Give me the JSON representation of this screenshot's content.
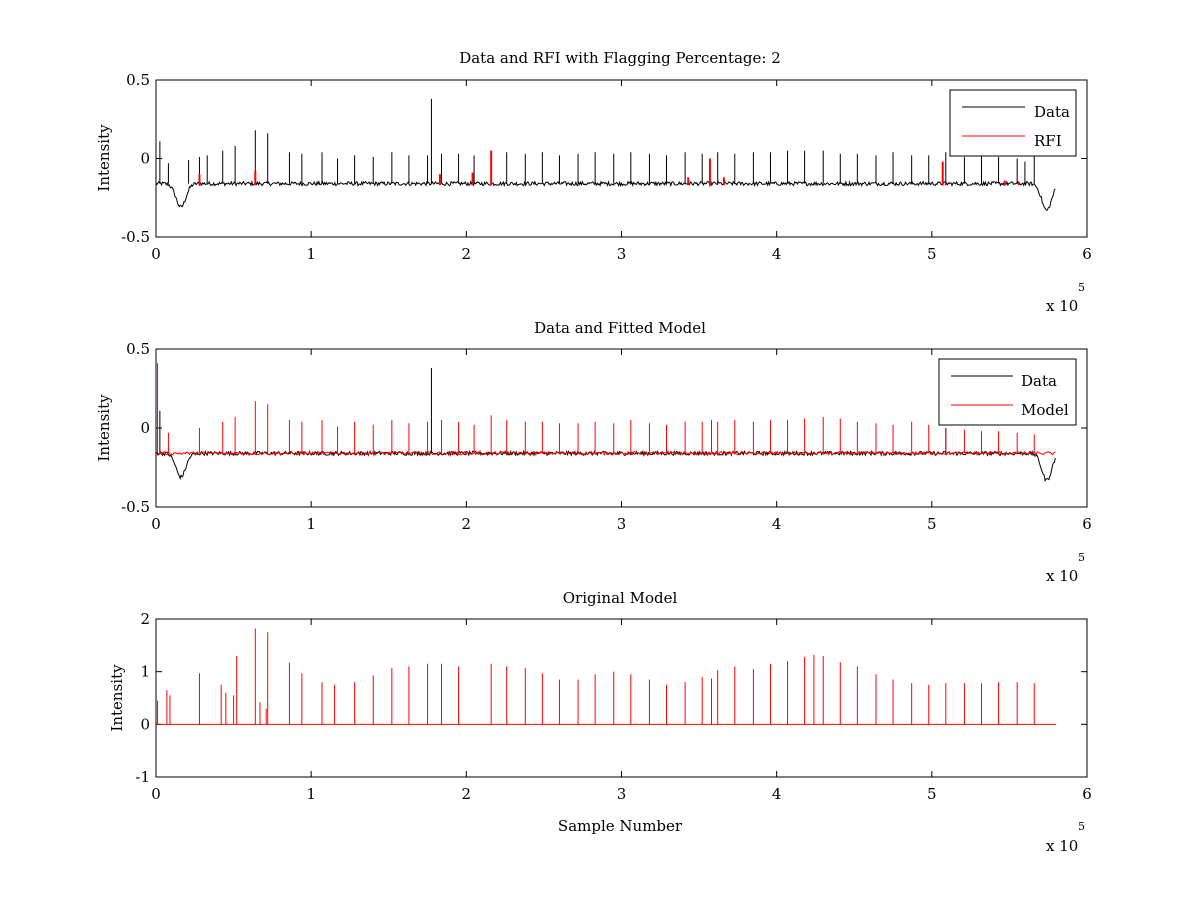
{
  "window": {
    "background": "#ffffff"
  },
  "colors": {
    "data": "#000000",
    "rfi": "#ff0000",
    "model": "#ff0000",
    "axes": "#000000"
  },
  "chart_data": [
    {
      "type": "line",
      "title": "Data and RFI with Flagging Percentage: 2",
      "xlabel": "",
      "ylabel": "Intensity",
      "xlim": [
        0,
        600000
      ],
      "ylim": [
        -0.5,
        0.5
      ],
      "xticks": [
        0,
        1,
        2,
        3,
        4,
        5,
        6
      ],
      "yticks": [
        -0.5,
        0,
        0.5
      ],
      "xtick_labels": [
        "0",
        "1",
        "2",
        "3",
        "4",
        "5",
        "6"
      ],
      "ytick_labels": [
        "-0.5",
        "0",
        "0.5"
      ],
      "x_multiplier_label": "x 10",
      "x_multiplier_exponent": "5",
      "legend_position": "top-right",
      "grid": false,
      "series": [
        {
          "name": "Data",
          "color": "#000000",
          "baseline": -0.16,
          "spikes_x": [
            2500,
            8000,
            21000,
            28000,
            33000,
            43000,
            51000,
            64000,
            72000,
            86000,
            94000,
            107000,
            117000,
            128000,
            140000,
            152000,
            163000,
            175000,
            177500,
            184000,
            195000,
            205000,
            216000,
            226000,
            238000,
            249000,
            260000,
            272000,
            283000,
            295000,
            306000,
            318000,
            329000,
            341000,
            352000,
            362000,
            373000,
            385000,
            396000,
            407000,
            418000,
            430000,
            441000,
            452000,
            464000,
            475000,
            487000,
            498000,
            509000,
            521000,
            532000,
            543000,
            555000,
            560000,
            566000
          ],
          "spikes_y": [
            0.11,
            -0.03,
            -0.01,
            0.01,
            0.02,
            0.05,
            0.08,
            0.18,
            0.16,
            0.04,
            0.03,
            0.04,
            0.0,
            0.02,
            0.01,
            0.04,
            0.02,
            0.02,
            0.38,
            0.03,
            0.03,
            0.02,
            0.05,
            0.04,
            0.03,
            0.04,
            0.02,
            0.03,
            0.04,
            0.03,
            0.04,
            0.03,
            0.02,
            0.04,
            0.03,
            0.04,
            0.03,
            0.04,
            0.04,
            0.05,
            0.05,
            0.05,
            0.03,
            0.03,
            0.02,
            0.04,
            0.02,
            0.02,
            0.04,
            0.01,
            0.02,
            0.01,
            0.0,
            -0.02,
            0.05
          ],
          "dips_x": [
            16000,
            574000
          ],
          "dips_y": [
            -0.31,
            -0.33
          ]
        },
        {
          "name": "RFI",
          "color": "#ff0000",
          "x": [
            28000,
            64000,
            183000,
            204000,
            216000,
            343000,
            357000,
            366000,
            507000,
            509000,
            547000,
            553000,
            556000
          ],
          "y": [
            -0.1,
            -0.08,
            -0.1,
            -0.09,
            0.05,
            -0.12,
            0.0,
            -0.12,
            -0.02,
            -0.16,
            -0.14,
            -0.17,
            -0.15
          ]
        }
      ]
    },
    {
      "type": "line",
      "title": "Data and Fitted Model",
      "xlabel": "",
      "ylabel": "Intensity",
      "xlim": [
        0,
        600000
      ],
      "ylim": [
        -0.5,
        0.5
      ],
      "xticks": [
        0,
        1,
        2,
        3,
        4,
        5,
        6
      ],
      "yticks": [
        -0.5,
        0,
        0.5
      ],
      "xtick_labels": [
        "0",
        "1",
        "2",
        "3",
        "4",
        "5",
        "6"
      ],
      "ytick_labels": [
        "-0.5",
        "0",
        "0.5"
      ],
      "x_multiplier_label": "x 10",
      "x_multiplier_exponent": "5",
      "legend_position": "top-right",
      "grid": false,
      "series": [
        {
          "name": "Data",
          "color": "#000000",
          "baseline": -0.16,
          "spikes_x": [
            2500,
            177500,
            509000
          ],
          "spikes_y": [
            0.11,
            0.38,
            0.0
          ],
          "dips_x": [
            16000,
            574000
          ],
          "dips_y": [
            -0.31,
            -0.33
          ]
        },
        {
          "name": "Model",
          "color": "#ff0000",
          "baseline": -0.16,
          "x": [
            1000,
            8000,
            28000,
            43000,
            51000,
            64000,
            72000,
            86000,
            94000,
            107000,
            117000,
            128000,
            140000,
            152000,
            163000,
            175000,
            184000,
            195000,
            205000,
            216000,
            226000,
            238000,
            249000,
            260000,
            272000,
            283000,
            295000,
            306000,
            318000,
            329000,
            341000,
            352000,
            358000,
            362000,
            373000,
            385000,
            396000,
            407000,
            418000,
            430000,
            441000,
            452000,
            464000,
            475000,
            487000,
            498000,
            509000,
            521000,
            532000,
            543000,
            555000,
            566000
          ],
          "y": [
            0.41,
            -0.03,
            0.0,
            0.04,
            0.07,
            0.17,
            0.15,
            0.05,
            0.04,
            0.05,
            0.01,
            0.04,
            0.02,
            0.05,
            0.03,
            0.04,
            0.05,
            0.04,
            0.02,
            0.08,
            0.05,
            0.04,
            0.04,
            0.03,
            0.03,
            0.04,
            0.03,
            0.05,
            0.03,
            0.02,
            0.04,
            0.04,
            0.05,
            0.04,
            0.05,
            0.04,
            0.05,
            0.05,
            0.06,
            0.07,
            0.06,
            0.04,
            0.03,
            0.02,
            0.04,
            0.02,
            0.0,
            -0.01,
            -0.02,
            -0.02,
            -0.03,
            -0.04
          ]
        }
      ]
    },
    {
      "type": "line",
      "title": "Original Model",
      "xlabel": "Sample Number",
      "ylabel": "Intensity",
      "xlim": [
        0,
        600000
      ],
      "ylim": [
        -1,
        2
      ],
      "xticks": [
        0,
        1,
        2,
        3,
        4,
        5,
        6
      ],
      "yticks": [
        -1,
        0,
        1,
        2
      ],
      "xtick_labels": [
        "0",
        "1",
        "2",
        "3",
        "4",
        "5",
        "6"
      ],
      "ytick_labels": [
        "-1",
        "0",
        "1",
        "2"
      ],
      "x_multiplier_label": "x 10",
      "x_multiplier_exponent": "5",
      "grid": false,
      "series": [
        {
          "name": "Model",
          "color": "#ff0000",
          "baseline": 0,
          "x": [
            1000,
            7000,
            9000,
            28000,
            42000,
            45000,
            50000,
            52000,
            64000,
            67000,
            71000,
            72000,
            86000,
            94000,
            107000,
            115000,
            128000,
            140000,
            152000,
            163000,
            175000,
            184000,
            195000,
            216000,
            226000,
            238000,
            249000,
            260000,
            272000,
            283000,
            295000,
            306000,
            318000,
            329000,
            341000,
            352000,
            358000,
            362000,
            373000,
            385000,
            396000,
            407000,
            418000,
            424000,
            430000,
            441000,
            452000,
            464000,
            475000,
            487000,
            498000,
            509000,
            521000,
            532000,
            543000,
            555000,
            566000
          ],
          "y": [
            0.45,
            0.65,
            0.55,
            0.97,
            0.75,
            0.6,
            0.55,
            1.3,
            1.82,
            0.42,
            0.3,
            1.75,
            1.17,
            0.97,
            0.8,
            0.75,
            0.8,
            0.93,
            1.07,
            1.1,
            1.15,
            1.15,
            1.1,
            1.15,
            1.1,
            1.07,
            0.97,
            0.85,
            0.85,
            0.95,
            1.0,
            0.95,
            0.85,
            0.75,
            0.8,
            0.9,
            0.87,
            1.03,
            1.1,
            1.05,
            1.15,
            1.2,
            1.28,
            1.32,
            1.3,
            1.18,
            1.1,
            0.95,
            0.85,
            0.78,
            0.75,
            0.78,
            0.78,
            0.78,
            0.8,
            0.8,
            0.78
          ]
        }
      ]
    }
  ]
}
